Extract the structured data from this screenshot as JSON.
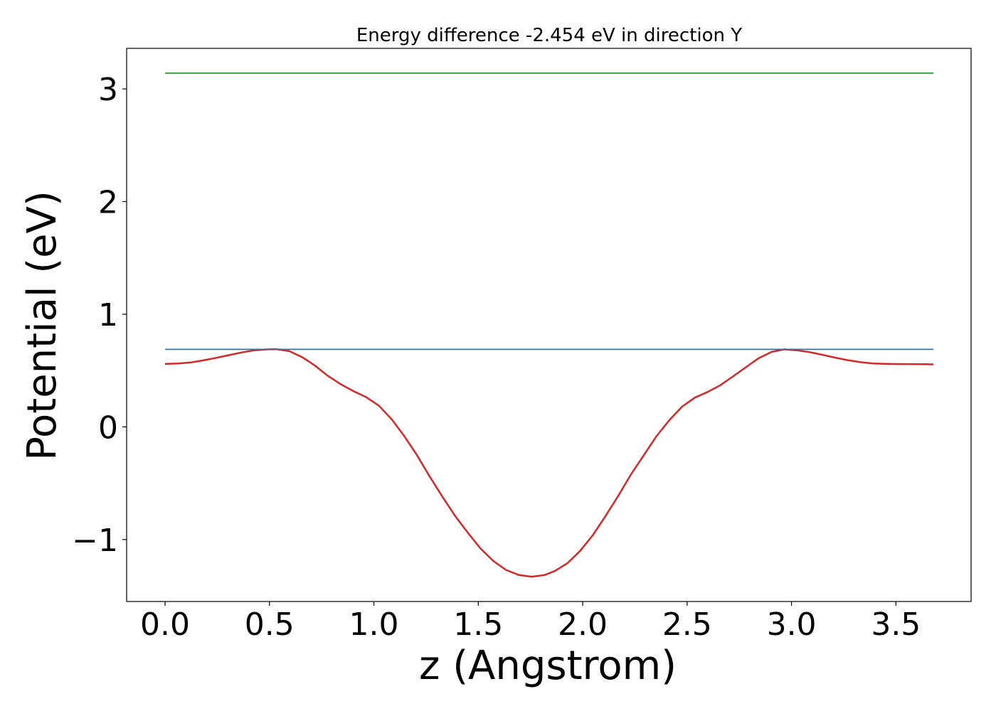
{
  "chart_data": {
    "type": "line",
    "title": "Energy difference -2.454 eV in direction Y",
    "xlabel": "z (Angstrom)",
    "ylabel": "Potential (eV)",
    "xlim": [
      -0.184,
      3.86
    ],
    "ylim": [
      -1.55,
      3.36
    ],
    "xticks": [
      0.0,
      0.5,
      1.0,
      1.5,
      2.0,
      2.5,
      3.0,
      3.5
    ],
    "xtick_labels": [
      "0.0",
      "0.5",
      "1.0",
      "1.5",
      "2.0",
      "2.5",
      "3.0",
      "3.5"
    ],
    "yticks": [
      -1,
      0,
      1,
      2,
      3
    ],
    "ytick_labels": [
      "−1",
      "0",
      "1",
      "2",
      "3"
    ],
    "grid": false,
    "legend": false,
    "series": [
      {
        "color": "#d62728",
        "x": [
          0.0,
          0.061,
          0.122,
          0.183,
          0.245,
          0.306,
          0.367,
          0.428,
          0.489,
          0.534,
          0.595,
          0.656,
          0.717,
          0.778,
          0.84,
          0.901,
          0.962,
          1.023,
          1.084,
          1.145,
          1.206,
          1.267,
          1.328,
          1.389,
          1.45,
          1.511,
          1.572,
          1.633,
          1.695,
          1.756,
          1.817,
          1.866,
          1.927,
          1.988,
          2.049,
          2.11,
          2.171,
          2.232,
          2.293,
          2.354,
          2.415,
          2.476,
          2.537,
          2.598,
          2.659,
          2.721,
          2.782,
          2.843,
          2.904,
          2.965,
          3.026,
          3.087,
          3.148,
          3.209,
          3.27,
          3.331,
          3.392,
          3.453,
          3.514,
          3.575,
          3.636,
          3.68
        ],
        "values": [
          0.56,
          0.562,
          0.572,
          0.59,
          0.613,
          0.637,
          0.661,
          0.68,
          0.688,
          0.69,
          0.672,
          0.62,
          0.545,
          0.455,
          0.38,
          0.318,
          0.265,
          0.19,
          0.07,
          -0.08,
          -0.25,
          -0.44,
          -0.62,
          -0.79,
          -0.94,
          -1.08,
          -1.19,
          -1.27,
          -1.315,
          -1.33,
          -1.315,
          -1.28,
          -1.21,
          -1.1,
          -0.96,
          -0.79,
          -0.61,
          -0.42,
          -0.25,
          -0.08,
          0.06,
          0.18,
          0.26,
          0.31,
          0.37,
          0.45,
          0.53,
          0.61,
          0.665,
          0.688,
          0.68,
          0.663,
          0.64,
          0.615,
          0.592,
          0.574,
          0.562,
          0.56,
          0.558,
          0.557,
          0.556,
          0.555
        ]
      },
      {
        "color": "#1f77b4",
        "x": [
          0.0,
          3.68
        ],
        "values": [
          0.688,
          0.688
        ]
      },
      {
        "color": "#2ca02c",
        "x": [
          0.0,
          3.68
        ],
        "values": [
          3.14,
          3.14
        ]
      }
    ]
  }
}
